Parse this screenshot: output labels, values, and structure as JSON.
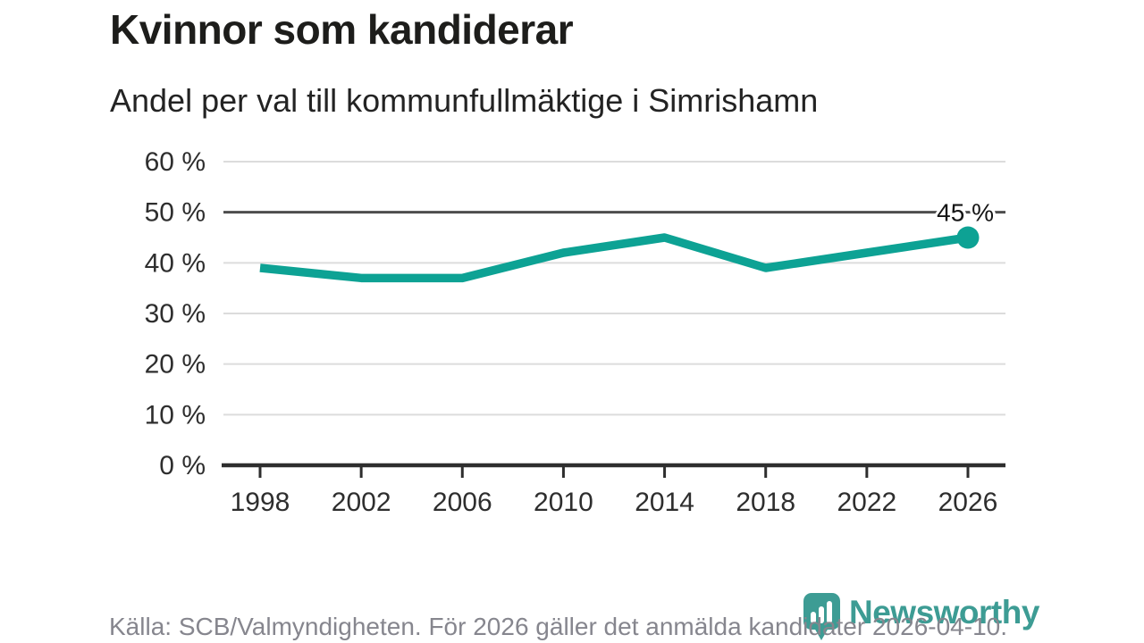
{
  "header": {
    "title": "Kvinnor som kandiderar",
    "subtitle": "Andel per val till kommunfullmäktige i Simrishamn"
  },
  "chart_data": {
    "type": "line",
    "title": "Kvinnor som kandiderar",
    "subtitle": "Andel per val till kommunfullmäktige i Simrishamn",
    "x": [
      "1998",
      "2002",
      "2006",
      "2010",
      "2014",
      "2018",
      "2022",
      "2026"
    ],
    "values": [
      39,
      37,
      37,
      42,
      45,
      39,
      42,
      45
    ],
    "end_label": "45 %",
    "xlabel": "",
    "ylabel": "",
    "ylim": [
      0,
      60
    ],
    "ytick_step": 10,
    "yticks": [
      "0 %",
      "10 %",
      "20 %",
      "30 %",
      "40 %",
      "50 %",
      "60 %"
    ],
    "emphasized_gridline": 50,
    "grid": true,
    "legend": "none",
    "colors": {
      "line": "#0DA294",
      "grid": "#dcdcdc",
      "grid_emphasis": "#4d4d4d",
      "axis": "#2e2e2e",
      "tick_label": "#2e2e2e",
      "end_label": "#141414"
    }
  },
  "footer": {
    "source": "Källa: SCB/Valmyndigheten. För 2026 gäller det anmälda kandidater 2026-04-10.",
    "logo_text": "Newsworthy",
    "logo_color": "#3D9C94"
  }
}
